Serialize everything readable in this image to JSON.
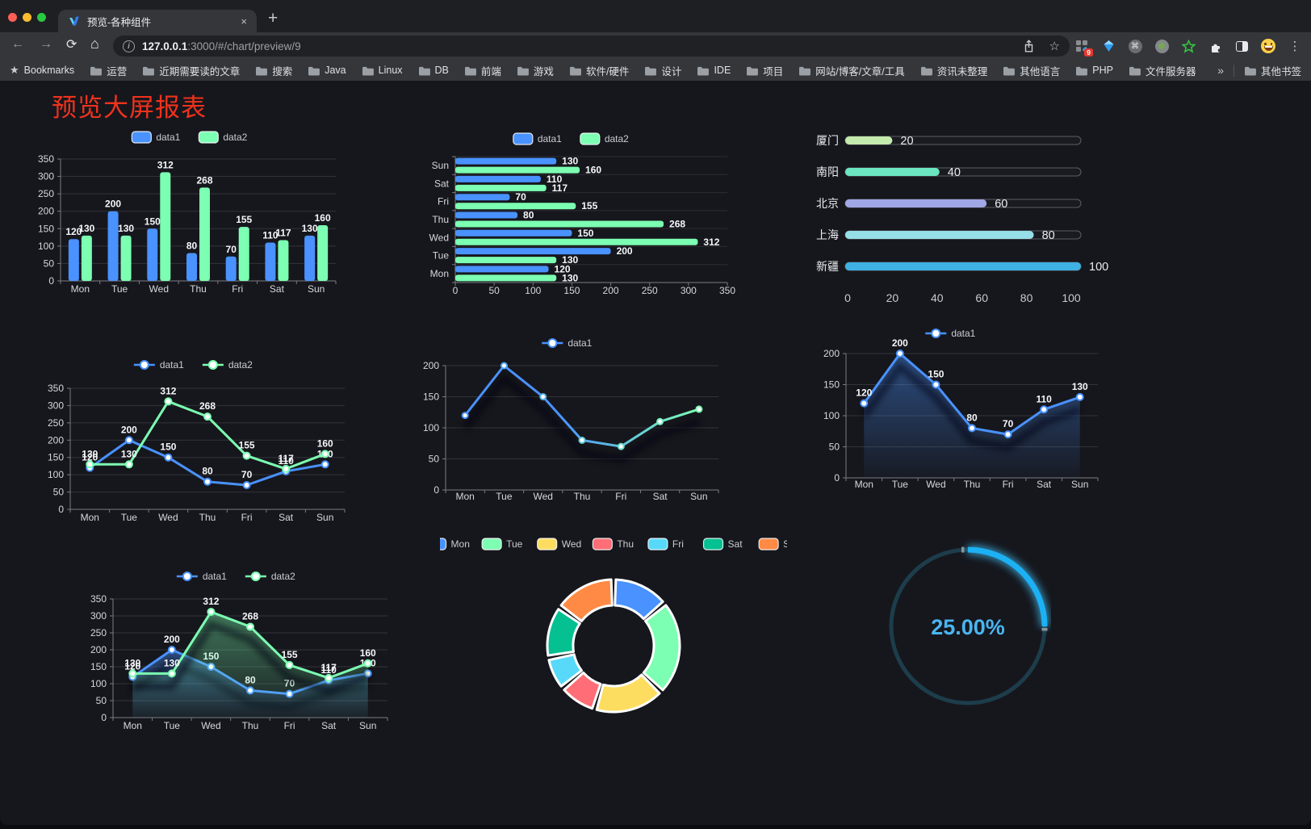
{
  "browser": {
    "tab": {
      "title": "预览-各种组件"
    },
    "url": {
      "host": "127.0.0.1",
      "rest": ":3000/#/chart/preview/9"
    },
    "icons": {
      "back": "←",
      "forward": "→",
      "reload": "⟳",
      "home": "⌂",
      "bookmark_star": "☆",
      "bookmarks_star": "★",
      "menu": "⋮",
      "command": "⌘",
      "overflow": "»",
      "close": "×",
      "new_tab": "+",
      "info": "i"
    },
    "extension_badge": "9",
    "bookmarks": {
      "label": "Bookmarks",
      "folders": [
        "运营",
        "近期需要读的文章",
        "搜索",
        "Java",
        "Linux",
        "DB",
        "前端",
        "游戏",
        "软件/硬件",
        "设计",
        "IDE",
        "项目",
        "网站/博客/文章/工具",
        "资讯未整理",
        "其他语言",
        "PHP",
        "文件服务器"
      ],
      "other": "其他书签"
    }
  },
  "page": {
    "title": "预览大屏报表",
    "title_color": "#f0321c",
    "background": "#16171d"
  },
  "chart_data": [
    {
      "id": "grouped-bar",
      "type": "bar",
      "categories": [
        "Mon",
        "Tue",
        "Wed",
        "Thu",
        "Fri",
        "Sat",
        "Sun"
      ],
      "series": [
        {
          "name": "data1",
          "color": "#4992ff",
          "values": [
            120,
            200,
            150,
            80,
            70,
            110,
            130
          ]
        },
        {
          "name": "data2",
          "color": "#7cffb2",
          "values": [
            130,
            130,
            312,
            268,
            155,
            117,
            160
          ]
        }
      ],
      "ylim": [
        0,
        350
      ],
      "ystep": 50,
      "legend_position": "top",
      "grid": true,
      "value_labels": true
    },
    {
      "id": "horizontal-bar",
      "type": "bar",
      "orientation": "horizontal",
      "categories": [
        "Mon",
        "Tue",
        "Wed",
        "Thu",
        "Fri",
        "Sat",
        "Sun"
      ],
      "display_order_top_to_bottom": [
        "Sun",
        "Sat",
        "Fri",
        "Thu",
        "Wed",
        "Tue",
        "Mon"
      ],
      "series": [
        {
          "name": "data1",
          "color": "#4992ff",
          "values": [
            120,
            200,
            150,
            80,
            70,
            110,
            130
          ]
        },
        {
          "name": "data2",
          "color": "#7cffb2",
          "values": [
            130,
            130,
            312,
            268,
            155,
            117,
            160
          ]
        }
      ],
      "xlim": [
        0,
        350
      ],
      "xstep": 50,
      "legend_position": "top",
      "value_labels": true
    },
    {
      "id": "progress-bars",
      "type": "bar",
      "subtype": "progress",
      "max": 100,
      "axis_ticks": [
        0,
        20,
        40,
        60,
        80,
        100
      ],
      "items": [
        {
          "label": "厦门",
          "value": 20,
          "color": "#c4ebad"
        },
        {
          "label": "南阳",
          "value": 40,
          "color": "#6be6c1"
        },
        {
          "label": "北京",
          "value": 60,
          "color": "#a0a7e6"
        },
        {
          "label": "上海",
          "value": 80,
          "color": "#96dee8"
        },
        {
          "label": "新疆",
          "value": 100,
          "color": "#3fb1e3"
        }
      ]
    },
    {
      "id": "dual-line",
      "type": "line",
      "categories": [
        "Mon",
        "Tue",
        "Wed",
        "Thu",
        "Fri",
        "Sat",
        "Sun"
      ],
      "series": [
        {
          "name": "data1",
          "color": "#4992ff",
          "values": [
            120,
            200,
            150,
            80,
            70,
            110,
            130
          ]
        },
        {
          "name": "data2",
          "color": "#7cffb2",
          "values": [
            130,
            130,
            312,
            268,
            155,
            117,
            160
          ]
        }
      ],
      "ylim": [
        0,
        350
      ],
      "ystep": 50,
      "legend_position": "top",
      "value_labels": true,
      "area": false
    },
    {
      "id": "gradient-line",
      "type": "line",
      "categories": [
        "Mon",
        "Tue",
        "Wed",
        "Thu",
        "Fri",
        "Sat",
        "Sun"
      ],
      "series": [
        {
          "name": "data1",
          "color": "#4992ff",
          "gradient": [
            "#4992ff",
            "#7cffb2"
          ],
          "values": [
            120,
            200,
            150,
            80,
            70,
            110,
            130
          ]
        }
      ],
      "ylim": [
        0,
        200
      ],
      "ystep": 50,
      "legend_position": "top",
      "value_labels": false,
      "area": false,
      "shadow": true
    },
    {
      "id": "area-line",
      "type": "area",
      "categories": [
        "Mon",
        "Tue",
        "Wed",
        "Thu",
        "Fri",
        "Sat",
        "Sun"
      ],
      "series": [
        {
          "name": "data1",
          "color": "#4992ff",
          "values": [
            120,
            200,
            150,
            80,
            70,
            110,
            130
          ]
        }
      ],
      "ylim": [
        0,
        200
      ],
      "ystep": 50,
      "legend_position": "top",
      "value_labels": true,
      "area": true,
      "shadow": true
    },
    {
      "id": "dual-area-line",
      "type": "area",
      "categories": [
        "Mon",
        "Tue",
        "Wed",
        "Thu",
        "Fri",
        "Sat",
        "Sun"
      ],
      "series": [
        {
          "name": "data1",
          "color": "#4992ff",
          "values": [
            120,
            200,
            150,
            80,
            70,
            110,
            130
          ]
        },
        {
          "name": "data2",
          "color": "#7cffb2",
          "values": [
            130,
            130,
            312,
            268,
            155,
            117,
            160
          ]
        }
      ],
      "ylim": [
        0,
        350
      ],
      "ystep": 50,
      "legend_position": "top",
      "value_labels": true,
      "area": true,
      "shadow": true
    },
    {
      "id": "donut",
      "type": "pie",
      "inner_radius_ratio": 0.61,
      "categories": [
        "Mon",
        "Tue",
        "Wed",
        "Thu",
        "Fri",
        "Sat",
        "Sun"
      ],
      "values": [
        120,
        200,
        150,
        80,
        70,
        110,
        130
      ],
      "colors": [
        "#4992ff",
        "#7cffb2",
        "#fddd60",
        "#ff6e76",
        "#58d9f9",
        "#05c091",
        "#ff8a45"
      ],
      "legend_position": "top",
      "slice_border_color": "#ffffff"
    },
    {
      "id": "gauge",
      "type": "gauge",
      "label": "25.00%",
      "percent": 25,
      "color": "#1cb1f5",
      "track_color": "#1d3d4b",
      "text_color": "#4ab5f2"
    }
  ]
}
